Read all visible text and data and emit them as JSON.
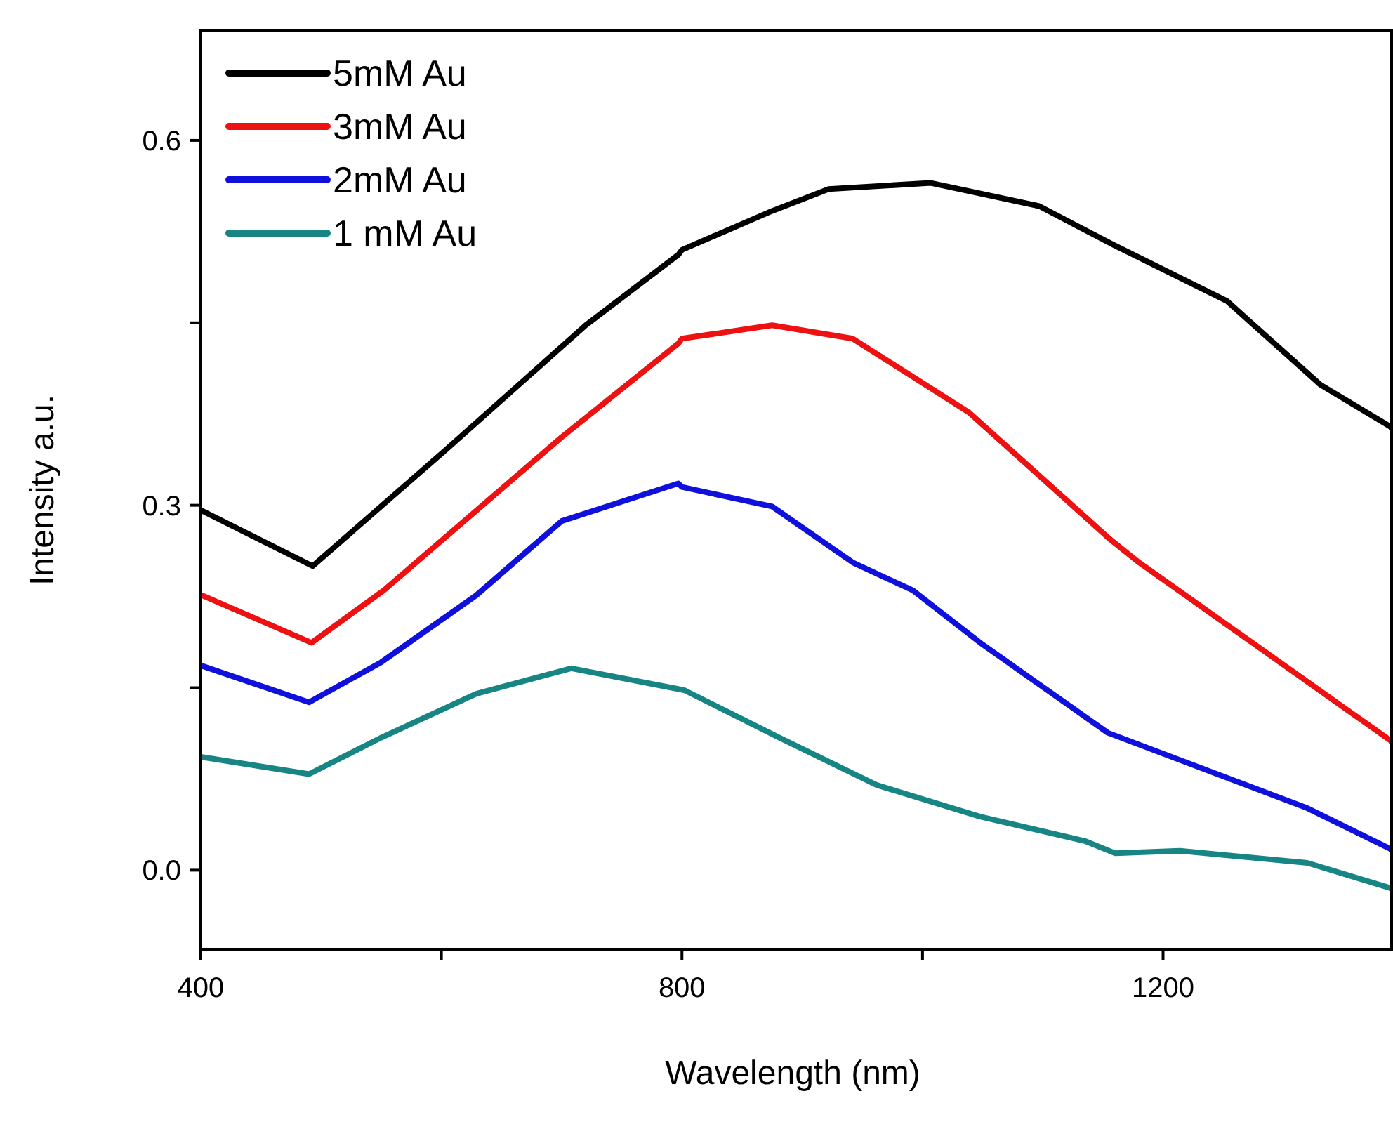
{
  "chart_data": {
    "type": "line",
    "xlabel": "Wavelength (nm)",
    "ylabel": "Intensity a.u.",
    "xlim": [
      400,
      1390
    ],
    "ylim": [
      -0.065,
      0.69
    ],
    "xticks": [
      400,
      {
        "value": 600,
        "label": null
      },
      800,
      {
        "value": 1000,
        "label": null
      },
      1200
    ],
    "yticks": [
      {
        "value": 0.0,
        "label": "0.0"
      },
      {
        "value": 0.15,
        "label": null
      },
      0.3,
      {
        "value": 0.45,
        "label": null
      },
      0.6
    ],
    "grid": false,
    "legend": "top left",
    "marker": "none",
    "line_style": "solid",
    "series": [
      {
        "name": "5mM Au",
        "color": "#000000",
        "x": [
          400,
          493,
          603,
          720,
          797,
          800,
          875,
          922,
          1007,
          1097,
          1159,
          1253,
          1331,
          1390
        ],
        "values": [
          0.296,
          0.25,
          0.345,
          0.448,
          0.506,
          0.51,
          0.542,
          0.56,
          0.565,
          0.546,
          0.514,
          0.468,
          0.399,
          0.364
        ]
      },
      {
        "name": "3mM Au",
        "color": "#ee1111",
        "x": [
          401,
          492,
          552,
          700,
          797,
          800,
          875,
          942,
          1039,
          1156,
          1180,
          1347,
          1390
        ],
        "values": [
          0.226,
          0.187,
          0.23,
          0.356,
          0.433,
          0.437,
          0.448,
          0.437,
          0.376,
          0.272,
          0.253,
          0.136,
          0.106
        ]
      },
      {
        "name": "2mM Au",
        "color": "#1010dd",
        "x": [
          401,
          490,
          550,
          629,
          700,
          797,
          800,
          875,
          942,
          992,
          1048,
          1154,
          1320,
          1390
        ],
        "values": [
          0.168,
          0.138,
          0.171,
          0.226,
          0.287,
          0.318,
          0.315,
          0.299,
          0.253,
          0.23,
          0.187,
          0.113,
          0.051,
          0.017
        ]
      },
      {
        "name": "1 mM Au",
        "color": "#168583",
        "x": [
          401,
          490,
          550,
          629,
          708,
          802,
          881,
          962,
          1048,
          1135,
          1160,
          1214,
          1320,
          1390
        ],
        "values": [
          0.093,
          0.079,
          0.109,
          0.145,
          0.166,
          0.148,
          0.109,
          0.07,
          0.044,
          0.024,
          0.014,
          0.016,
          0.006,
          -0.015
        ]
      }
    ]
  }
}
